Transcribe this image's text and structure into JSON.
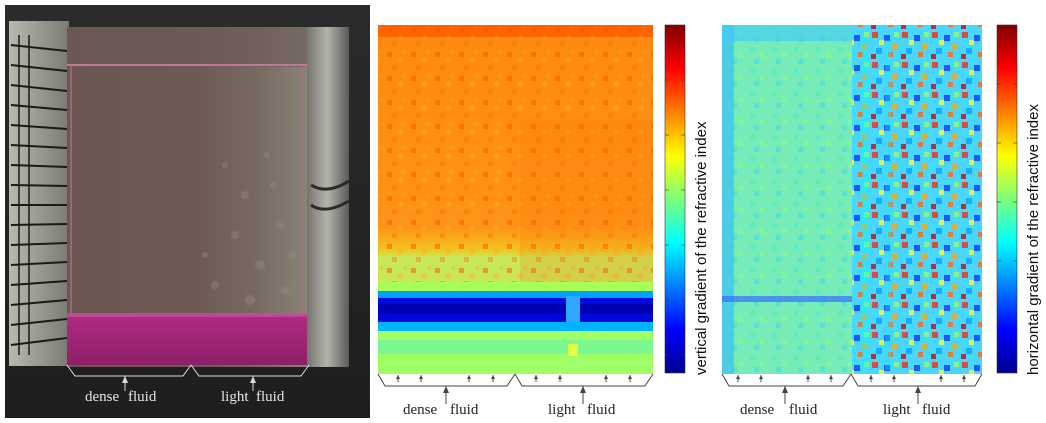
{
  "panels": {
    "photo": {
      "labels": [
        "dense",
        "fluid",
        "light",
        "fluid"
      ]
    },
    "vertical_map": {
      "colorbar_label": "vertical gradient of the refractive index",
      "labels": [
        "dense",
        "fluid",
        "light",
        "fluid"
      ]
    },
    "horizontal_map": {
      "colorbar_label": "horizontal gradient of the refractive index",
      "labels": [
        "dense",
        "fluid",
        "light",
        "fluid"
      ]
    }
  },
  "colors": {
    "jet_dark_blue": "#00008f",
    "jet_blue": "#0050ff",
    "jet_cyan": "#00d8ff",
    "jet_green": "#7dff7a",
    "jet_yellow": "#ffff00",
    "jet_orange": "#ff8c00",
    "jet_red": "#ff1a00",
    "jet_dark_red": "#800000"
  }
}
